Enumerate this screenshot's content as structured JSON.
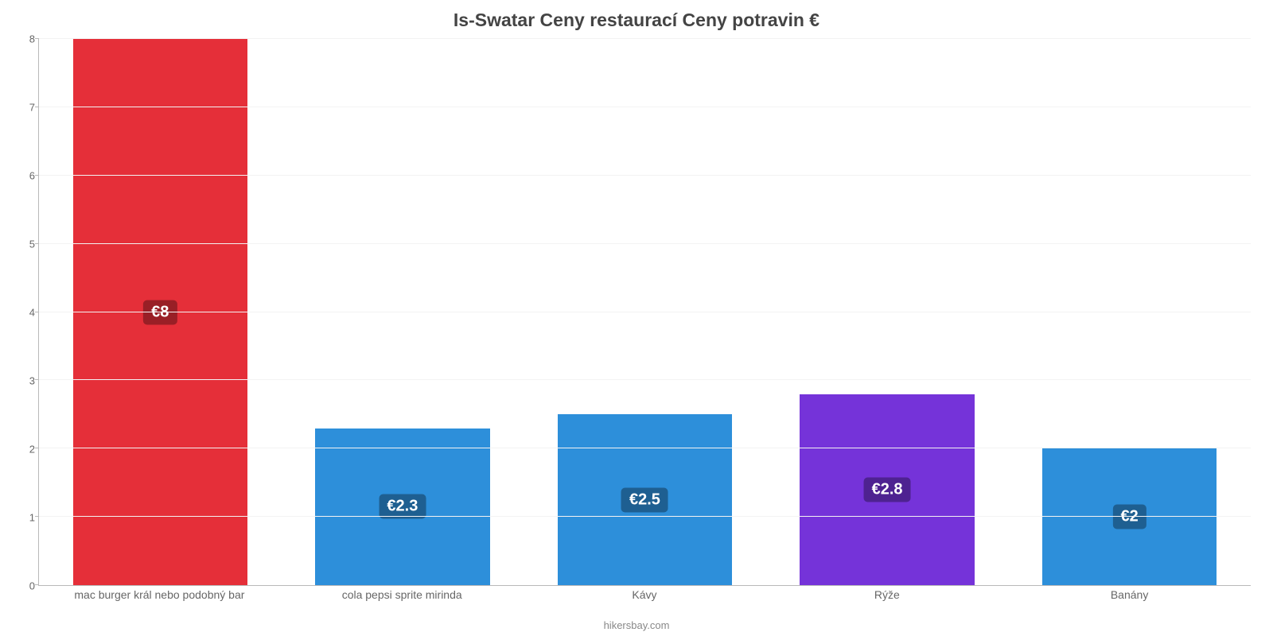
{
  "chart": {
    "type": "bar",
    "title": "Is-Swatar Ceny restaurací Ceny potravin €",
    "title_fontsize": 23,
    "title_color": "#444444",
    "credit": "hikersbay.com",
    "credit_color": "#888888",
    "background_color": "#ffffff",
    "grid_color": "#f3f3f3",
    "axis_color": "#b9b9b9",
    "label_color": "#666666",
    "label_fontsize": 14,
    "ylim": [
      0,
      8
    ],
    "ytick_step": 1,
    "bar_width_pct": 72,
    "categories": [
      "mac burger král nebo podobný bar",
      "cola pepsi sprite mirinda",
      "Kávy",
      "Rýže",
      "Banány"
    ],
    "values": [
      8,
      2.3,
      2.5,
      2.8,
      2
    ],
    "value_labels": [
      "€8",
      "€2.3",
      "€2.5",
      "€2.8",
      "€2"
    ],
    "bar_colors": [
      "#e52f39",
      "#2d8fda",
      "#2d8fda",
      "#7533d9",
      "#2d8fda"
    ],
    "badge_colors": [
      "#991f26",
      "#1e5f91",
      "#1e5f91",
      "#4e2291",
      "#1e5f91"
    ],
    "badge_fontsize": 20
  }
}
